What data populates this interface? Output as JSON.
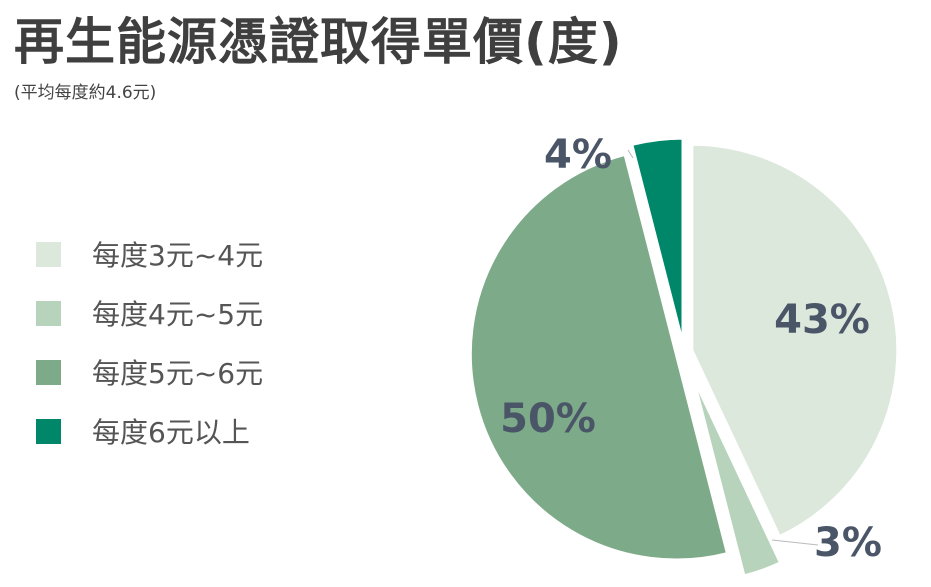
{
  "header": {
    "title": "再生能源憑證取得單價(度)",
    "subtitle": "(平均每度約4.6元)"
  },
  "colors": {
    "title": "#3f3f3f",
    "label": "#4a5568",
    "slices": [
      "#dce8dc",
      "#b7d3bb",
      "#7daa88",
      "#00876a"
    ]
  },
  "chart_data": {
    "type": "pie",
    "title": "再生能源憑證取得單價(度)",
    "subtitle": "(平均每度約4.6元)",
    "legend_position": "left",
    "slices": [
      {
        "label": "每度3元~4元",
        "value": 43,
        "display": "43%"
      },
      {
        "label": "每度4元~5元",
        "value": 3,
        "display": "3%"
      },
      {
        "label": "每度5元~6元",
        "value": 50,
        "display": "50%"
      },
      {
        "label": "每度6元以上",
        "value": 4,
        "display": "4%"
      }
    ]
  }
}
